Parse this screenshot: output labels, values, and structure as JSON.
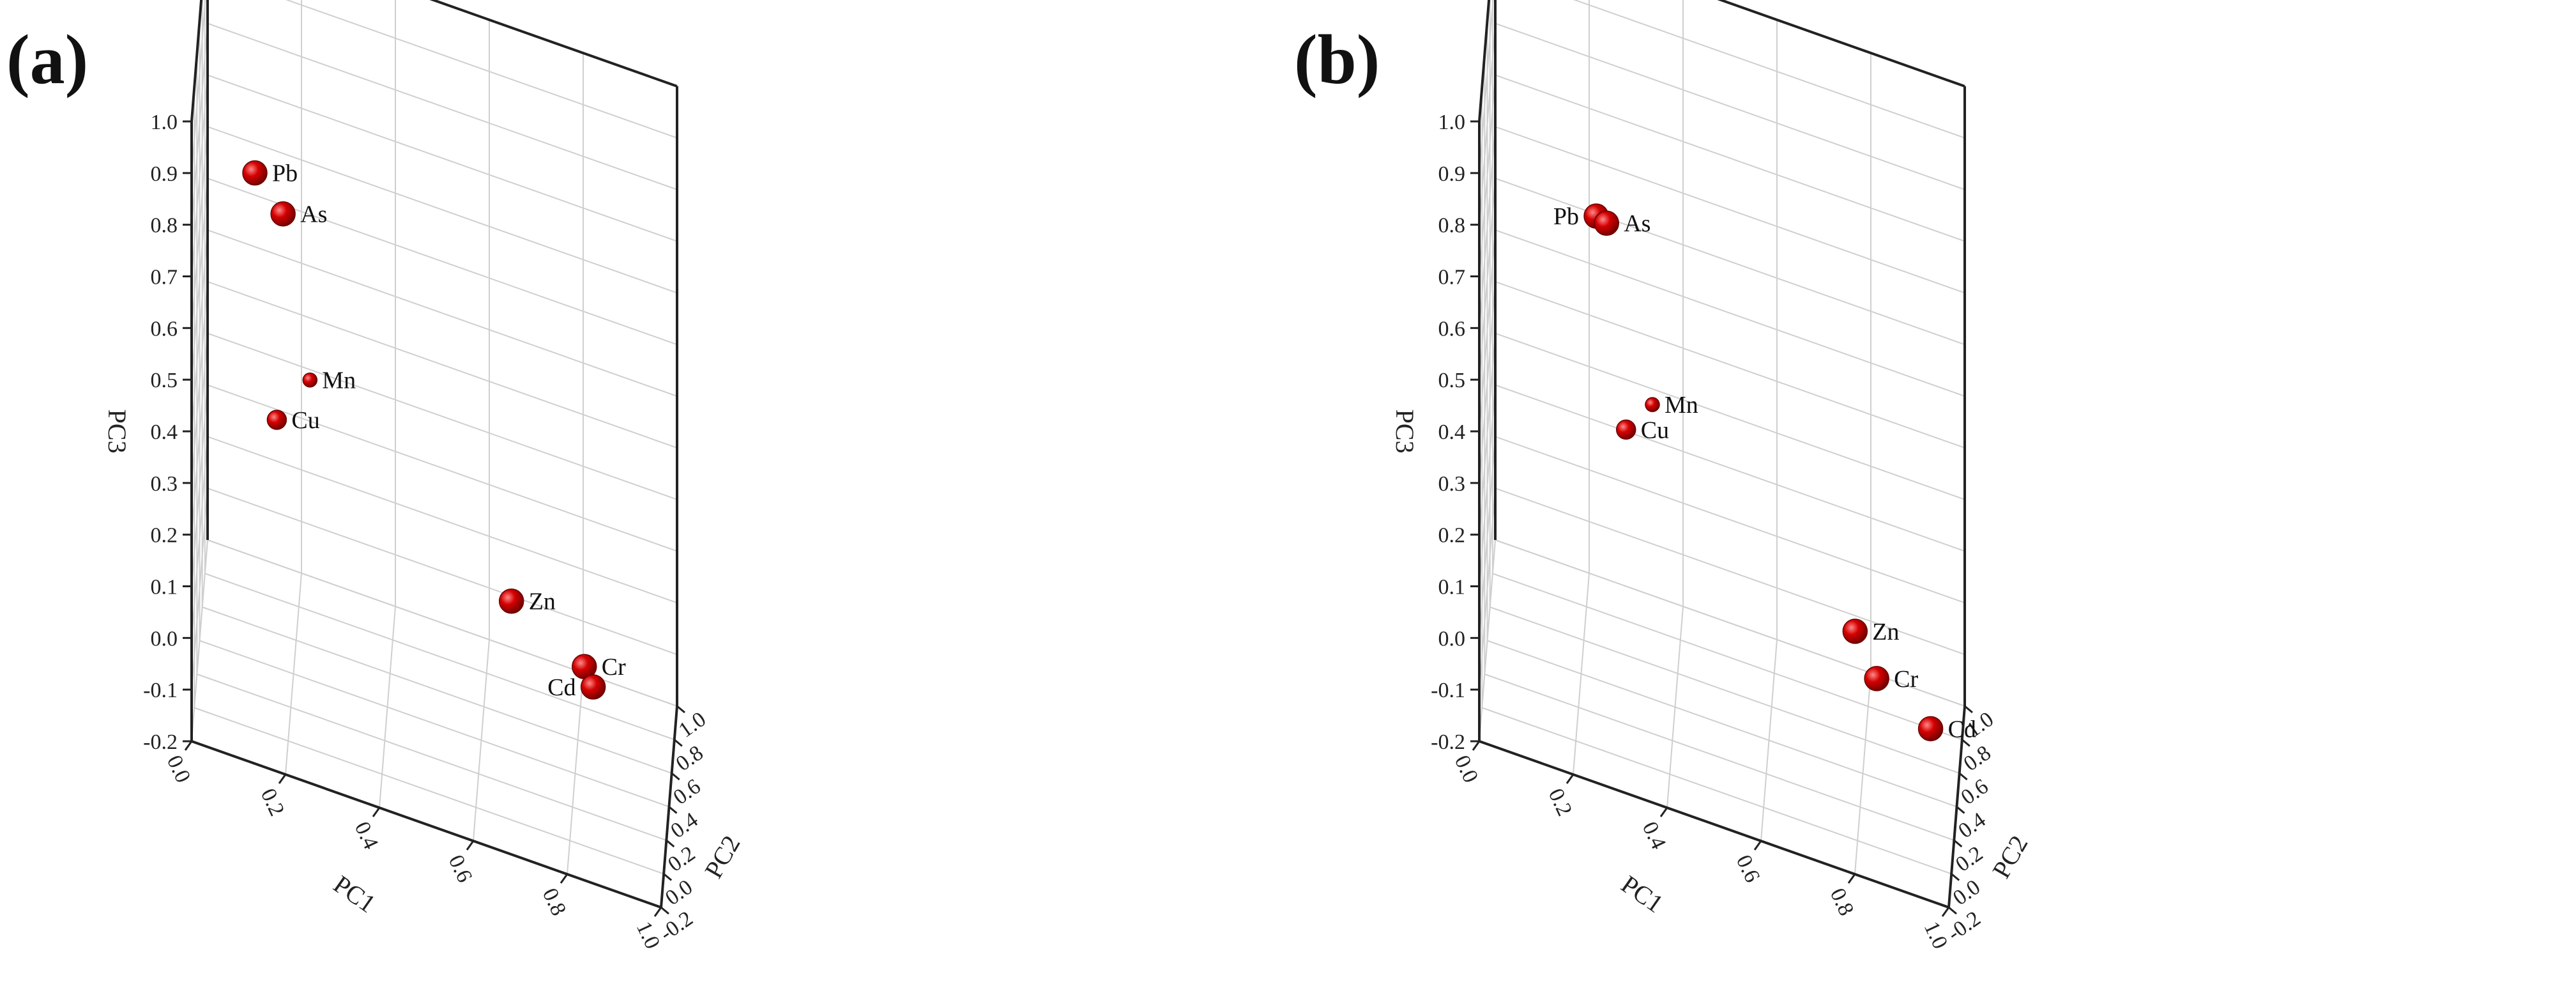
{
  "colors": {
    "marker": "#d40000",
    "marker_highlight": "#ff8a8a",
    "axis": "#222222",
    "grid": "#cfcfcf"
  },
  "chart_data": [
    {
      "panel": "(a)",
      "type": "scatter",
      "title": "",
      "xlabel": "PC1",
      "ylabel": "PC2",
      "zlabel": "PC3",
      "xlim": [
        0.0,
        1.0
      ],
      "ylim": [
        -0.2,
        1.0
      ],
      "zlim": [
        -0.2,
        1.0
      ],
      "x_ticks": [
        "0.0",
        "0.2",
        "0.4",
        "0.6",
        "0.8",
        "1.0"
      ],
      "y_ticks": [
        "-0.2",
        "0.0",
        "0.2",
        "0.4",
        "0.6",
        "0.8",
        "1.0"
      ],
      "z_ticks": [
        "-0.2",
        "-0.1",
        "0.0",
        "0.1",
        "0.2",
        "0.3",
        "0.4",
        "0.5",
        "0.6",
        "0.7",
        "0.8",
        "0.9",
        "1.0"
      ],
      "grid": true,
      "points": [
        {
          "label": "Pb",
          "x": 0.12,
          "y": 0.32,
          "z": 0.77,
          "size": "large",
          "label_side": "right"
        },
        {
          "label": "As",
          "x": 0.18,
          "y": 0.32,
          "z": 0.71,
          "size": "large",
          "label_side": "right"
        },
        {
          "label": "Mn",
          "x": 0.23,
          "y": 0.58,
          "z": 0.32,
          "size": "small",
          "label_side": "right"
        },
        {
          "label": "Cu",
          "x": 0.15,
          "y": 0.91,
          "z": 0.11,
          "size": "medium",
          "label_side": "right"
        },
        {
          "label": "Zn",
          "x": 0.66,
          "y": 0.55,
          "z": 0.04,
          "size": "large",
          "label_side": "right"
        },
        {
          "label": "Cr",
          "x": 0.82,
          "y": 0.38,
          "z": 0.02,
          "size": "large",
          "label_side": "right"
        },
        {
          "label": "Cd",
          "x": 0.84,
          "y": 0.34,
          "z": 0.0,
          "size": "large",
          "label_side": "left"
        }
      ]
    },
    {
      "panel": "(b)",
      "type": "scatter",
      "title": "",
      "xlabel": "PC1",
      "ylabel": "PC2",
      "zlabel": "PC3",
      "xlim": [
        0.0,
        1.0
      ],
      "ylim": [
        -0.2,
        1.0
      ],
      "zlim": [
        -0.2,
        1.0
      ],
      "x_ticks": [
        "0.0",
        "0.2",
        "0.4",
        "0.6",
        "0.8",
        "1.0"
      ],
      "y_ticks": [
        "-0.2",
        "0.0",
        "0.2",
        "0.4",
        "0.6",
        "0.8",
        "1.0"
      ],
      "z_ticks": [
        "-0.2",
        "-0.1",
        "0.0",
        "0.1",
        "0.2",
        "0.3",
        "0.4",
        "0.5",
        "0.6",
        "0.7",
        "0.8",
        "0.9",
        "1.0"
      ],
      "grid": true,
      "points": [
        {
          "label": "Pb",
          "x": 0.24,
          "y": 0.12,
          "z": 0.79,
          "size": "large",
          "label_side": "left"
        },
        {
          "label": "As",
          "x": 0.26,
          "y": 0.19,
          "z": 0.76,
          "size": "large",
          "label_side": "right"
        },
        {
          "label": "Mn",
          "x": 0.35,
          "y": 0.46,
          "z": 0.35,
          "size": "small",
          "label_side": "right"
        },
        {
          "label": "Cu",
          "x": 0.28,
          "y": 0.95,
          "z": 0.12,
          "size": "medium",
          "label_side": "right"
        },
        {
          "label": "Zn",
          "x": 0.78,
          "y": 0.52,
          "z": 0.03,
          "size": "large",
          "label_side": "right"
        },
        {
          "label": "Cr",
          "x": 0.83,
          "y": 0.38,
          "z": 0.0,
          "size": "large",
          "label_side": "right"
        },
        {
          "label": "Cd",
          "x": 0.95,
          "y": 0.2,
          "z": 0.0,
          "size": "large",
          "label_side": "right"
        }
      ]
    }
  ]
}
